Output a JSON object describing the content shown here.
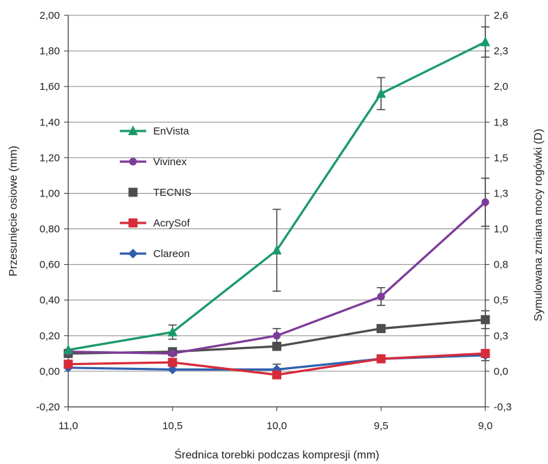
{
  "chart_data": {
    "type": "line",
    "title": "",
    "xlabel": "Średnica torebki podczas kompresji (mm)",
    "ylabel": "Przesunięcie osiowe (mm)",
    "y2label": "Symulowana zmiana mocy rogówki (D)",
    "categories": [
      "11,0",
      "10,5",
      "10,0",
      "9,5",
      "9,0"
    ],
    "ylim": [
      -0.2,
      2.0
    ],
    "yticks": [
      "-0,20",
      "0,00",
      "0,20",
      "0,40",
      "0,60",
      "0,80",
      "1,00",
      "1,20",
      "1,40",
      "1,60",
      "1,80",
      "2,00"
    ],
    "y2ticks": [
      "-0,3",
      "0,0",
      "0,3",
      "0,5",
      "0,8",
      "1,0",
      "1,3",
      "1,5",
      "1,8",
      "2,0",
      "2,3",
      "2,6"
    ],
    "grid": true,
    "legend_position": "left",
    "series": [
      {
        "name": "EnVista",
        "color": "#1a9a6a",
        "marker": "triangle",
        "values": [
          0.12,
          0.22,
          0.68,
          1.56,
          1.85
        ],
        "error": [
          null,
          0.04,
          0.23,
          0.09,
          0.085
        ]
      },
      {
        "name": "Vivinex",
        "color": "#7d3c98",
        "marker": "circle",
        "values": [
          0.11,
          0.1,
          0.2,
          0.42,
          0.95
        ],
        "error": [
          null,
          null,
          0.04,
          0.05,
          0.135
        ]
      },
      {
        "name": "TECNIS",
        "color": "#4d4d4d",
        "marker": "square",
        "values": [
          0.1,
          0.11,
          0.14,
          0.24,
          0.29
        ],
        "error": [
          null,
          null,
          null,
          null,
          0.05
        ]
      },
      {
        "name": "AcrySof",
        "color": "#d52b3a",
        "marker": "square",
        "values": [
          0.04,
          0.05,
          -0.02,
          0.07,
          0.1
        ],
        "error": [
          null,
          null,
          null,
          null,
          null
        ]
      },
      {
        "name": "Clareon",
        "color": "#2f5fae",
        "marker": "diamond",
        "values": [
          0.02,
          0.01,
          0.01,
          0.07,
          0.09
        ],
        "error": [
          null,
          null,
          0.03,
          null,
          0.03
        ]
      }
    ]
  }
}
